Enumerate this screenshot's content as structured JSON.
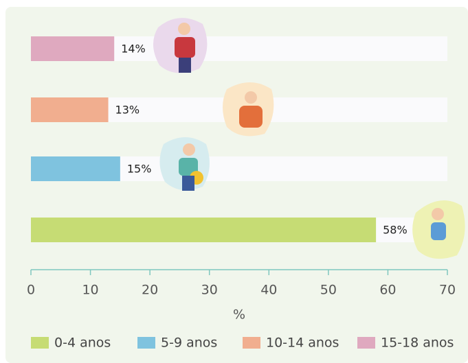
{
  "chart_data": {
    "type": "hbar",
    "categories": [
      "15-18 anos",
      "10-14 anos",
      "5-9 anos",
      "0-4 anos"
    ],
    "values": [
      14,
      13,
      15,
      58
    ],
    "value_labels": [
      "14%",
      "13%",
      "15%",
      "58%"
    ],
    "colors": [
      "#dfa9bf",
      "#f1ae8f",
      "#7fc3df",
      "#c6dc74"
    ],
    "xlim": [
      0,
      70
    ],
    "xticks": [
      0,
      10,
      20,
      30,
      40,
      50,
      60,
      70
    ],
    "xlabel": "%"
  }
}
